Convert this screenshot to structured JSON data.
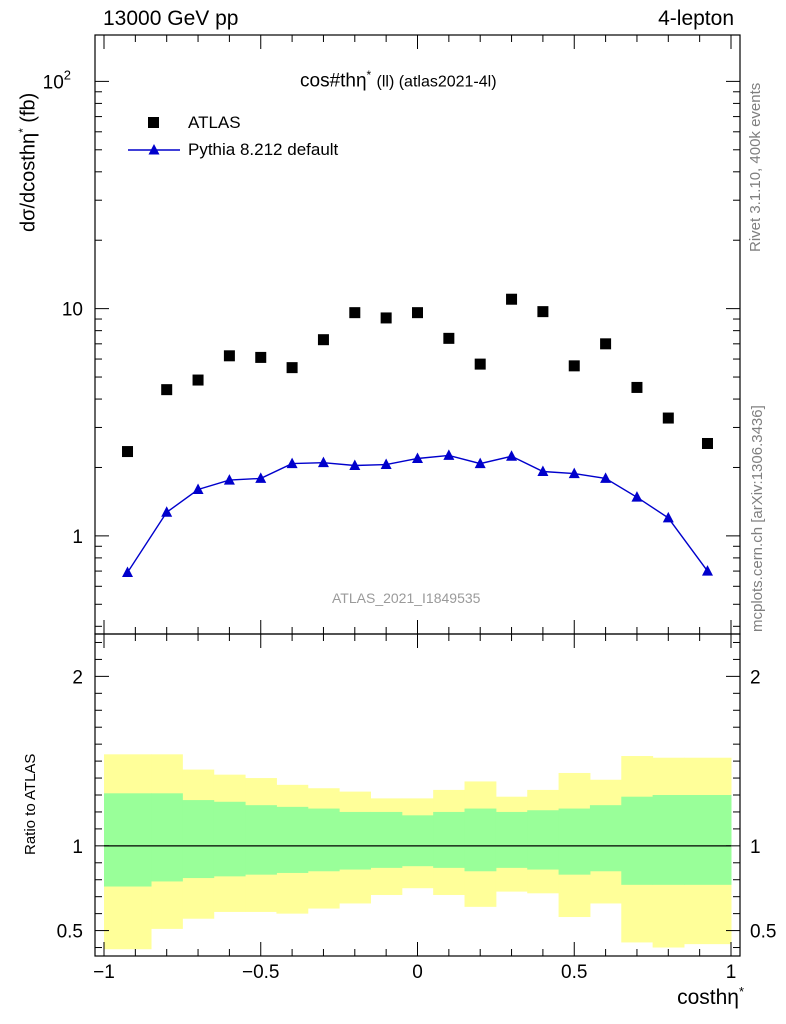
{
  "header": {
    "left": "13000 GeV pp",
    "right": "4-lepton"
  },
  "title": {
    "main": "cos#thη",
    "sup": "*",
    "tail": "(ll) (atlas2021-4l)"
  },
  "side_labels": {
    "rivet": "Rivet 3.1.10,  400k events",
    "mcplots": "mcplots.cern.ch [arXiv:1306.3436]"
  },
  "watermark": "ATLAS_2021_I1849535",
  "legend": {
    "data_label": "ATLAS",
    "mc_label": "Pythia 8.212 default"
  },
  "axes": {
    "ylabel_main": "dσ/dcosthη",
    "ylabel_main_sup": "*",
    "ylabel_main_unit": "(fb)",
    "ylabel_ratio": "Ratio to ATLAS",
    "xlabel": "costhη",
    "xlabel_sup": "*"
  },
  "colors": {
    "data": "#000000",
    "mc": "#0000cc",
    "band_inner": "#99ff99",
    "band_outer": "#ffff99"
  },
  "chart_data": [
    {
      "type": "scatter",
      "yscale": "log",
      "xlim": [
        -1.0,
        1.0
      ],
      "ylim": [
        0.37,
        160
      ],
      "yticks": [
        1,
        10,
        100
      ],
      "yticklabels": [
        "1",
        "10",
        "10^2"
      ],
      "series": [
        {
          "name": "ATLAS",
          "x": [
            -0.925,
            -0.8,
            -0.7,
            -0.6,
            -0.5,
            -0.4,
            -0.3,
            -0.2,
            -0.1,
            0.0,
            0.1,
            0.2,
            0.3,
            0.4,
            0.5,
            0.6,
            0.7,
            0.8,
            0.925
          ],
          "y": [
            2.35,
            4.4,
            4.85,
            6.2,
            6.1,
            5.5,
            7.3,
            9.6,
            9.1,
            9.6,
            7.4,
            5.7,
            11.0,
            9.7,
            5.6,
            7.0,
            4.5,
            3.3,
            2.55
          ]
        },
        {
          "name": "Pythia 8.212 default",
          "x": [
            -0.925,
            -0.8,
            -0.7,
            -0.6,
            -0.5,
            -0.4,
            -0.3,
            -0.2,
            -0.1,
            0.0,
            0.1,
            0.2,
            0.3,
            0.4,
            0.5,
            0.6,
            0.7,
            0.8,
            0.925
          ],
          "y": [
            0.69,
            1.27,
            1.6,
            1.76,
            1.79,
            2.08,
            2.1,
            2.04,
            2.06,
            2.19,
            2.26,
            2.08,
            2.24,
            1.92,
            1.88,
            1.79,
            1.48,
            1.2,
            0.7
          ]
        }
      ]
    },
    {
      "type": "area",
      "xlim": [
        -1.0,
        1.0
      ],
      "ylim": [
        0.35,
        2.25
      ],
      "yticks": [
        0.5,
        1,
        2
      ],
      "xticks": [
        -1,
        -0.5,
        0,
        0.5,
        1
      ],
      "xticklabels": [
        "−1",
        "−0.5",
        "0",
        "0.5",
        "1"
      ],
      "bin_edges": [
        -0.85,
        -0.75,
        -0.65,
        -0.55,
        -0.45,
        -0.35,
        -0.25,
        -0.15,
        -0.05,
        0.05,
        0.15,
        0.25,
        0.35,
        0.45,
        0.55,
        0.65,
        0.75,
        0.85
      ],
      "bins_x_range": [
        -1.0,
        1.0
      ],
      "inner_band": {
        "low": [
          0.76,
          0.79,
          0.81,
          0.82,
          0.83,
          0.84,
          0.85,
          0.86,
          0.87,
          0.88,
          0.87,
          0.85,
          0.87,
          0.86,
          0.83,
          0.85,
          0.77,
          0.77,
          0.77
        ],
        "high": [
          1.31,
          1.31,
          1.27,
          1.26,
          1.24,
          1.23,
          1.22,
          1.2,
          1.2,
          1.18,
          1.2,
          1.22,
          1.2,
          1.21,
          1.22,
          1.24,
          1.29,
          1.3,
          1.3
        ]
      },
      "outer_band": {
        "low": [
          0.39,
          0.51,
          0.57,
          0.61,
          0.61,
          0.6,
          0.63,
          0.66,
          0.71,
          0.75,
          0.71,
          0.64,
          0.73,
          0.72,
          0.58,
          0.66,
          0.43,
          0.4,
          0.42
        ]
      },
      "outer_high": [
        1.54,
        1.54,
        1.45,
        1.42,
        1.4,
        1.36,
        1.34,
        1.32,
        1.28,
        1.28,
        1.33,
        1.38,
        1.29,
        1.33,
        1.43,
        1.39,
        1.53,
        1.52,
        1.52
      ],
      "reference_line": 1
    }
  ]
}
